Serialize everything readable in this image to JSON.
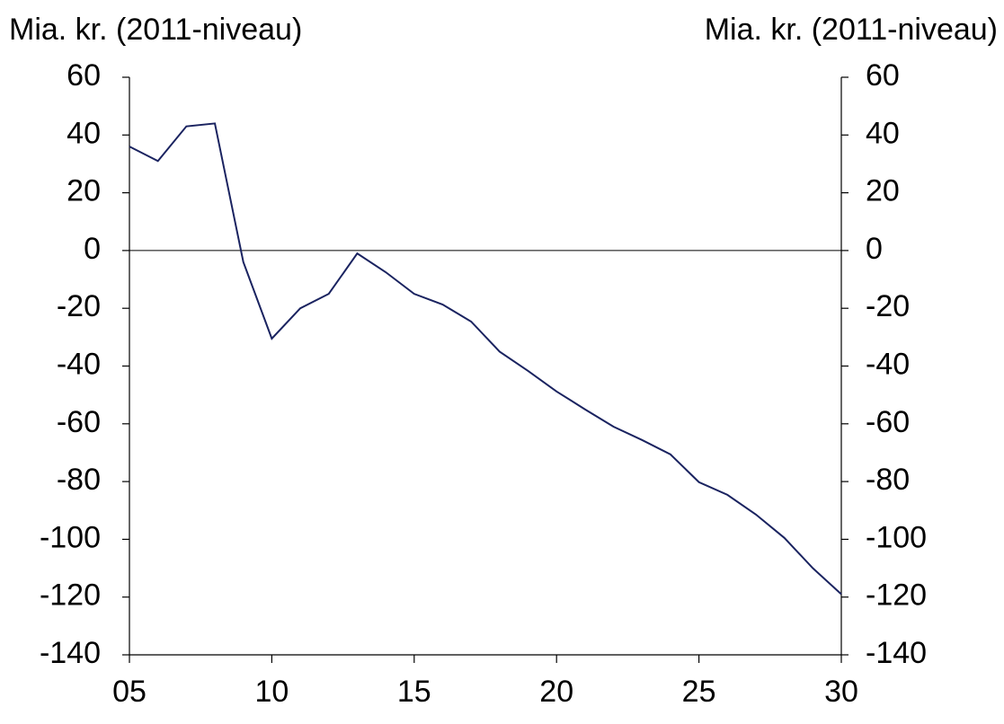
{
  "chart_data": {
    "type": "line",
    "y_label": "Mia. kr. (2011-niveau)",
    "y2_label": "Mia. kr. (2011-niveau)",
    "x": [
      5,
      6,
      7,
      8,
      9,
      10,
      11,
      12,
      13,
      14,
      15,
      16,
      17,
      18,
      19,
      20,
      21,
      22,
      23,
      24,
      25,
      26,
      27,
      28,
      29,
      30
    ],
    "series": [
      {
        "name": null,
        "color": "#1a2360",
        "values": [
          36,
          31,
          43,
          44,
          -4,
          -30.5,
          -20,
          -15,
          -1,
          -7.5,
          -15,
          -18.7,
          -24.6,
          -35,
          -41.7,
          -48.8,
          -55,
          -61,
          -65.6,
          -70.6,
          -80.2,
          -84.6,
          -91.4,
          -99.5,
          -110,
          -119
        ]
      }
    ],
    "xlim": [
      5,
      30
    ],
    "xticks": [
      {
        "value": 5,
        "label": "05"
      },
      10,
      15,
      20,
      25,
      30
    ],
    "ylim": [
      -140,
      60
    ],
    "yticks": [
      60,
      40,
      20,
      0,
      -20,
      -40,
      -60,
      -80,
      -100,
      -120,
      -140
    ],
    "y2lim": [
      -140,
      60
    ],
    "y2ticks": [
      60,
      40,
      20,
      0,
      -20,
      -40,
      -60,
      -80,
      -100,
      -120,
      -140
    ]
  }
}
